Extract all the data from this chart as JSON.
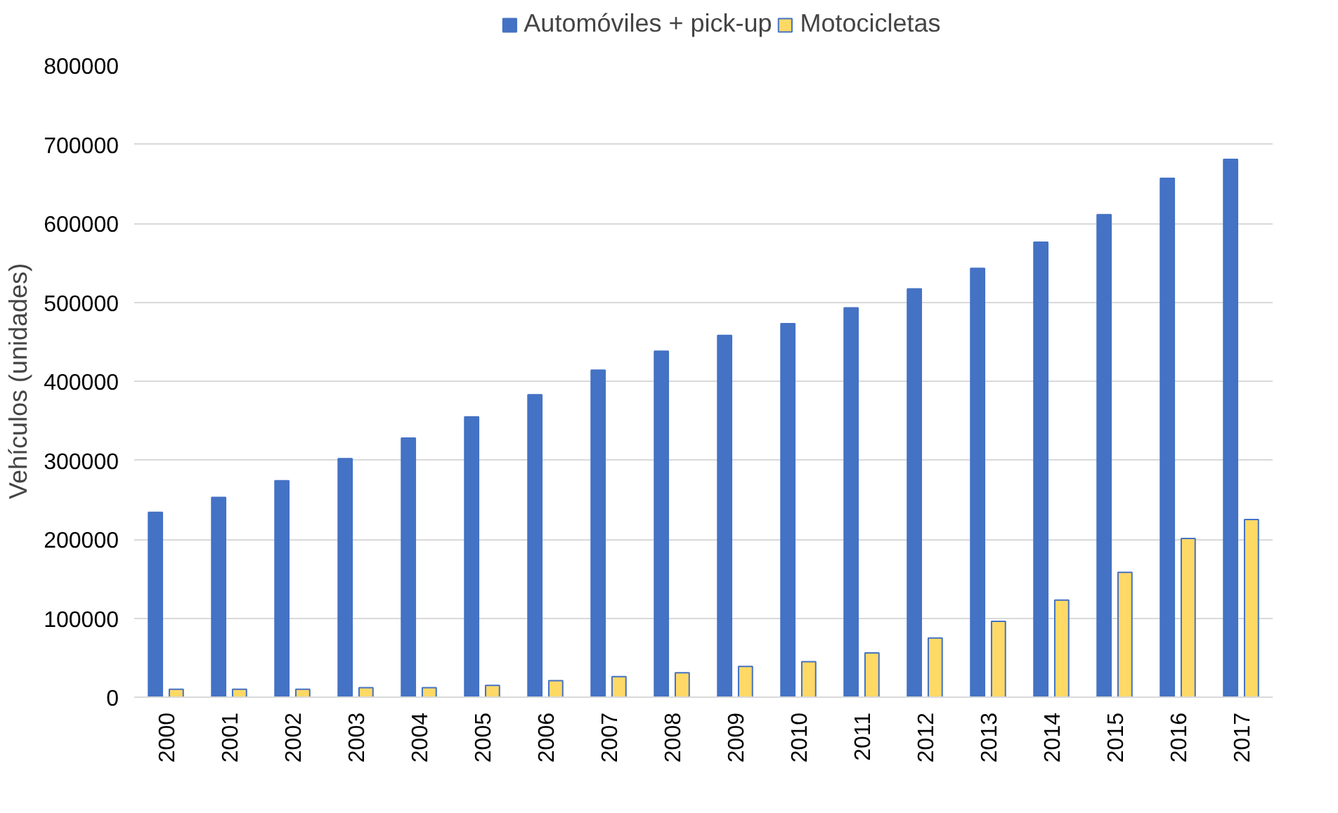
{
  "chart_data": {
    "type": "bar",
    "ylabel": "Vehículos (unidades)",
    "categories": [
      "2000",
      "2001",
      "2002",
      "2003",
      "2004",
      "2005",
      "2006",
      "2007",
      "2008",
      "2009",
      "2010",
      "2011",
      "2012",
      "2013",
      "2014",
      "2015",
      "2016",
      "2017"
    ],
    "series": [
      {
        "name": "Automóviles + pick-up",
        "color": "#4472c4",
        "values": [
          234000,
          253000,
          274000,
          302000,
          328000,
          355000,
          383000,
          414000,
          438000,
          458000,
          473000,
          493000,
          517000,
          543000,
          576000,
          611000,
          657000,
          681000
        ]
      },
      {
        "name": "Motocicletas",
        "color": "#ffd966",
        "values": [
          10000,
          10000,
          10000,
          12000,
          12000,
          15000,
          21000,
          26000,
          31000,
          39000,
          45000,
          56000,
          75000,
          96000,
          123000,
          158000,
          201000,
          225000
        ]
      }
    ],
    "ylim": [
      0,
      800000
    ],
    "yticks": [
      0,
      100000,
      200000,
      300000,
      400000,
      500000,
      600000,
      700000,
      800000
    ],
    "grid": "y",
    "legend": "top"
  }
}
